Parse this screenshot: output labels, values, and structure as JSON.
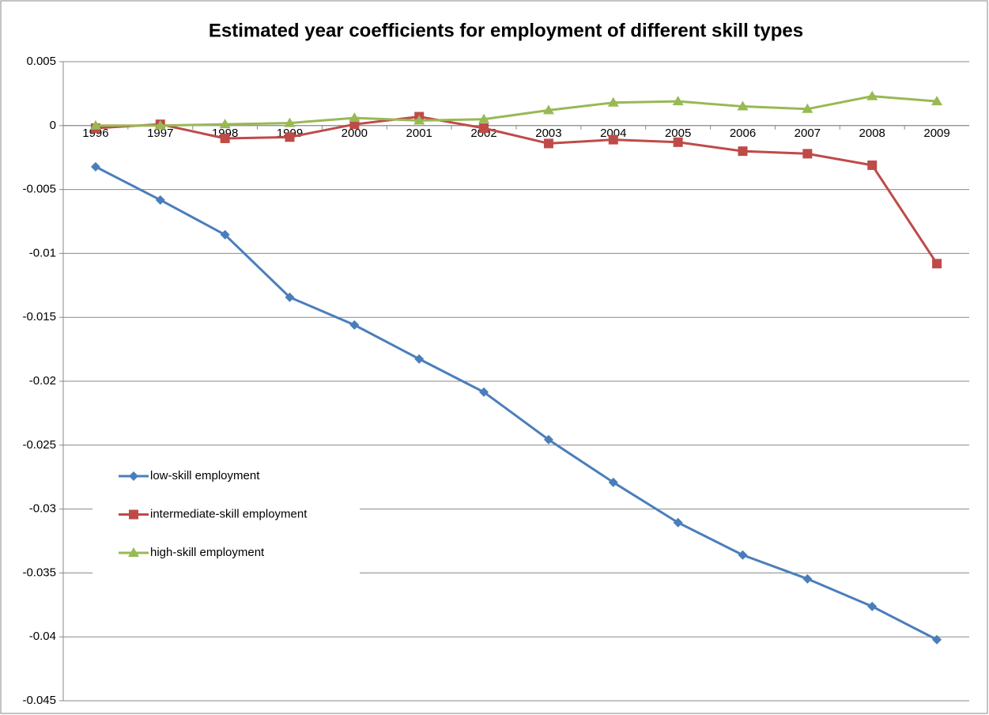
{
  "chart_data": {
    "type": "line",
    "title": "Estimated year coefficients for employment of different skill types",
    "categories": [
      "1996",
      "1997",
      "1998",
      "1999",
      "2000",
      "2001",
      "2002",
      "2003",
      "2004",
      "2005",
      "2006",
      "2007",
      "2008",
      "2009"
    ],
    "series": [
      {
        "name": "low-skill employment",
        "color": "#4a7ebb",
        "marker": "diamond",
        "values": [
          -0.00322,
          -0.00582,
          -0.00854,
          -0.01343,
          -0.0156,
          -0.01826,
          -0.02085,
          -0.02457,
          -0.02791,
          -0.03106,
          -0.0336,
          -0.03546,
          -0.03762,
          -0.04022
        ]
      },
      {
        "name": "intermediate-skill employment",
        "color": "#be4b48",
        "marker": "square",
        "values": [
          -0.0002,
          0.0001,
          -0.001,
          -0.0009,
          0.0001,
          0.0007,
          -0.0002,
          -0.0014,
          -0.0011,
          -0.0013,
          -0.002,
          -0.0022,
          -0.0031,
          -0.0108
        ]
      },
      {
        "name": "high-skill employment",
        "color": "#98b954",
        "marker": "triangle",
        "values": [
          0,
          0,
          0.0001,
          0.0002,
          0.0006,
          0.0004,
          0.0005,
          0.0012,
          0.0018,
          0.0019,
          0.0015,
          0.0013,
          0.0023,
          0.0019
        ]
      }
    ],
    "ylim": [
      -0.045,
      0.005
    ],
    "yticks": [
      0.005,
      0,
      -0.005,
      -0.01,
      -0.015,
      -0.02,
      -0.025,
      -0.03,
      -0.035,
      -0.04,
      -0.045
    ],
    "grid": true
  }
}
